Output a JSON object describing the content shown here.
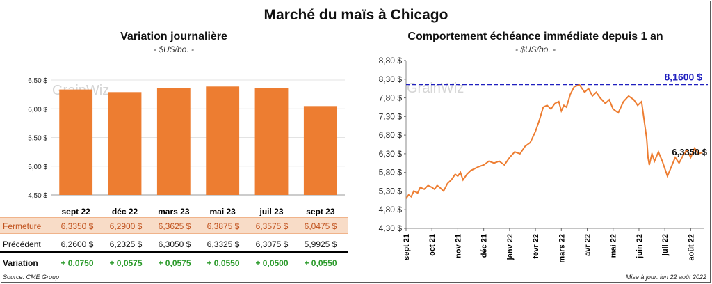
{
  "title": "Marché du maïs à Chicago",
  "left_panel": {
    "title": "Variation journalière",
    "subtitle": "- $US/bo. -",
    "watermark": "GrainWiz"
  },
  "right_panel": {
    "title": "Comportement échéance immédiate depuis 1 an",
    "subtitle": "- $US/bo. -",
    "watermark": "GrainWiz",
    "ref_label": "8,1600 $",
    "last_label": "6,3350 $"
  },
  "table": {
    "row_labels": {
      "close": "Fermeture",
      "prev": "Précédent",
      "var": "Variation"
    },
    "close": [
      "6,3350  $",
      "6,2900  $",
      "6,3625  $",
      "6,3875  $",
      "6,3575  $",
      "6,0475  $"
    ],
    "prev": [
      "6,2600  $",
      "6,2325  $",
      "6,3050  $",
      "6,3325  $",
      "6,3075  $",
      "5,9925  $"
    ],
    "var": [
      "+ 0,0750",
      "+ 0,0575",
      "+ 0,0575",
      "+ 0,0550",
      "+ 0,0500",
      "+ 0,0550"
    ]
  },
  "footer": {
    "source": "Source: CME Group",
    "updated": "Mise à jour: lun 22 août 2022"
  },
  "colors": {
    "bar": "#ed7d31",
    "line": "#ed7d31",
    "ref": "#1f1fbf",
    "var": "#2a9a2a"
  },
  "chart_data": [
    {
      "type": "bar",
      "title": "Variation journalière",
      "ylabel": "$US/bo.",
      "categories": [
        "sept 22",
        "déc 22",
        "mars 23",
        "mai 23",
        "juil 23",
        "sept 23"
      ],
      "values": [
        6.335,
        6.29,
        6.3625,
        6.3875,
        6.3575,
        6.0475
      ],
      "ylim": [
        4.5,
        6.5
      ],
      "yticks": [
        "4,50 $",
        "5,00 $",
        "5,50 $",
        "6,00 $",
        "6,50 $"
      ],
      "ytick_values": [
        4.5,
        5.0,
        5.5,
        6.0,
        6.5
      ]
    },
    {
      "type": "line",
      "title": "Comportement échéance immédiate depuis 1 an",
      "ylabel": "$US/bo.",
      "ylim": [
        4.3,
        8.8
      ],
      "yticks": [
        "4,30 $",
        "4,80 $",
        "5,30 $",
        "5,80 $",
        "6,30 $",
        "6,80 $",
        "7,30 $",
        "7,80 $",
        "8,30 $",
        "8,80 $"
      ],
      "ytick_values": [
        4.3,
        4.8,
        5.3,
        5.8,
        6.3,
        6.8,
        7.3,
        7.8,
        8.3,
        8.8
      ],
      "xticks": [
        "sept 21",
        "oct 21",
        "nov 21",
        "déc 21",
        "janv 22",
        "févr 22",
        "mars 22",
        "avr 22",
        "mai 22",
        "juin 22",
        "juil 22",
        "août 22"
      ],
      "reference_line": 8.16,
      "last_value": 6.335,
      "series_x_months": [
        0,
        0.1,
        0.2,
        0.3,
        0.45,
        0.55,
        0.7,
        0.85,
        1.0,
        1.1,
        1.2,
        1.3,
        1.45,
        1.6,
        1.75,
        1.9,
        2.0,
        2.1,
        2.2,
        2.35,
        2.5,
        2.65,
        2.8,
        3.0,
        3.2,
        3.4,
        3.6,
        3.8,
        4.0,
        4.2,
        4.4,
        4.6,
        4.8,
        5.0,
        5.15,
        5.3,
        5.45,
        5.6,
        5.75,
        5.9,
        6.0,
        6.1,
        6.2,
        6.35,
        6.5,
        6.7,
        6.9,
        7.05,
        7.2,
        7.35,
        7.5,
        7.7,
        7.85,
        8.0,
        8.2,
        8.4,
        8.6,
        8.8,
        8.95,
        9.1,
        9.2,
        9.3,
        9.35,
        9.4,
        9.5,
        9.6,
        9.75,
        9.9,
        10.0,
        10.1,
        10.25,
        10.4,
        10.55,
        10.7,
        10.85,
        11.0,
        11.15,
        11.3,
        11.45
      ],
      "series_y": [
        5.1,
        5.2,
        5.15,
        5.3,
        5.25,
        5.4,
        5.35,
        5.45,
        5.4,
        5.35,
        5.45,
        5.4,
        5.3,
        5.5,
        5.6,
        5.75,
        5.7,
        5.8,
        5.6,
        5.75,
        5.85,
        5.9,
        5.95,
        6.0,
        6.1,
        6.05,
        6.1,
        6.0,
        6.2,
        6.35,
        6.3,
        6.5,
        6.6,
        6.9,
        7.2,
        7.55,
        7.6,
        7.5,
        7.65,
        7.7,
        7.45,
        7.6,
        7.55,
        7.9,
        8.1,
        8.15,
        7.95,
        8.05,
        7.85,
        7.95,
        7.8,
        7.65,
        7.75,
        7.5,
        7.4,
        7.7,
        7.85,
        7.75,
        7.6,
        7.7,
        7.2,
        6.7,
        6.2,
        6.0,
        6.3,
        6.1,
        6.35,
        6.1,
        5.9,
        5.7,
        5.95,
        6.2,
        6.05,
        6.25,
        6.4,
        6.2,
        6.45,
        6.3,
        6.335
      ]
    }
  ]
}
